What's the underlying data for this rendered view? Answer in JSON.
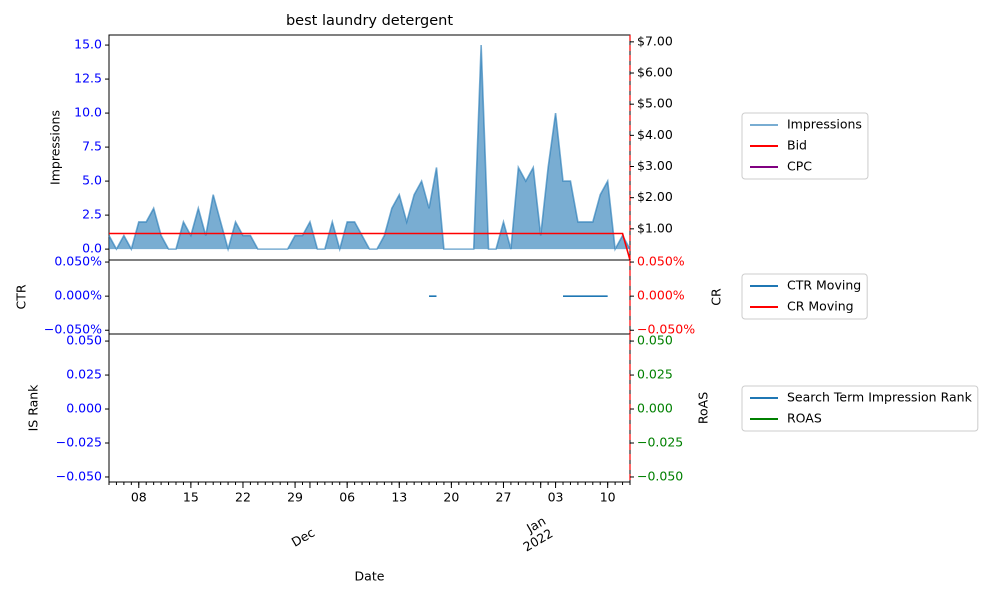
{
  "chart_data": [
    {
      "type": "line",
      "title": "best laundry detergent",
      "ylabel": "Impressions",
      "ylim": [
        -0.8,
        15.74
      ],
      "yticks": [
        {
          "value": 0,
          "label": "0.0"
        },
        2.5,
        {
          "value": 5,
          "label": "5.0"
        },
        7.5,
        {
          "value": 10,
          "label": "10.0"
        },
        12.5,
        {
          "value": 15,
          "label": "15.0"
        }
      ],
      "ytick_color": "blue",
      "y2lim": [
        0,
        7.22
      ],
      "y2ticks": [
        {
          "value": 1,
          "label": "$1.00"
        },
        {
          "value": 2,
          "label": "$2.00"
        },
        {
          "value": 3,
          "label": "$3.00"
        },
        {
          "value": 4,
          "label": "$4.00"
        },
        {
          "value": 5,
          "label": "$5.00"
        },
        {
          "value": 6,
          "label": "$6.00"
        },
        {
          "value": 7,
          "label": "$7.00"
        }
      ],
      "y2tick_color": "black",
      "legend": "outside right",
      "series": [
        {
          "name": "Impressions",
          "color": "#1f77b4",
          "alpha": 0.6,
          "fill": true,
          "values": [
            1,
            0,
            1,
            0,
            2,
            2,
            3,
            1,
            0,
            0,
            2,
            1,
            3,
            1,
            4,
            2,
            0,
            2,
            1,
            1,
            0,
            0,
            0,
            0,
            0,
            1,
            1,
            2,
            0,
            0,
            2,
            0,
            2,
            2,
            1,
            0,
            0,
            1,
            3,
            4,
            2,
            4,
            5,
            3,
            6,
            0,
            0,
            0,
            0,
            0,
            15,
            0,
            0,
            2,
            0,
            6,
            5,
            6,
            1,
            6,
            10,
            5,
            5,
            2,
            2,
            2,
            4,
            5,
            0,
            1,
            0
          ]
        },
        {
          "name": "Bid",
          "color": "red",
          "axis": "y2",
          "values": [
            0.85,
            0.85,
            0.85,
            0.85,
            0.85,
            0.85,
            0.85,
            0.85,
            0.85,
            0.85,
            0.85,
            0.85,
            0.85,
            0.85,
            0.85,
            0.85,
            0.85,
            0.85,
            0.85,
            0.85,
            0.85,
            0.85,
            0.85,
            0.85,
            0.85,
            0.85,
            0.85,
            0.85,
            0.85,
            0.85,
            0.85,
            0.85,
            0.85,
            0.85,
            0.85,
            0.85,
            0.85,
            0.85,
            0.85,
            0.85,
            0.85,
            0.85,
            0.85,
            0.85,
            0.85,
            0.85,
            0.85,
            0.85,
            0.85,
            0.85,
            0.85,
            0.85,
            0.85,
            0.85,
            0.85,
            0.85,
            0.85,
            0.85,
            0.85,
            0.85,
            0.85,
            0.85,
            0.85,
            0.85,
            0.85,
            0.85,
            0.85,
            0.85,
            0.85,
            0.85,
            0
          ]
        },
        {
          "name": "CPC",
          "color": "purple",
          "axis": "y2",
          "values": [
            null,
            null,
            null,
            null,
            null,
            null,
            null,
            null,
            null,
            null,
            null,
            null,
            null,
            null,
            null,
            null,
            null,
            null,
            null,
            null,
            null,
            null,
            null,
            null,
            null,
            null,
            null,
            null,
            null,
            null,
            null,
            null,
            null,
            null,
            null,
            null,
            null,
            null,
            null,
            null,
            null,
            null,
            null,
            null,
            null,
            null,
            null,
            null,
            null,
            null,
            null,
            null,
            null,
            null,
            null,
            null,
            null,
            null,
            null,
            null,
            null,
            null,
            null,
            null,
            null,
            null,
            null,
            null,
            null,
            null,
            null
          ]
        }
      ]
    },
    {
      "type": "line",
      "ylabel": "CTR",
      "y2label": "CR",
      "ylim": [
        -0.0555,
        0.053
      ],
      "yticks": [
        {
          "value": -0.05,
          "label": "−0.050%"
        },
        {
          "value": 0,
          "label": "0.000%"
        },
        {
          "value": 0.05,
          "label": "0.050%"
        }
      ],
      "ytick_color": "blue",
      "y2lim": [
        -0.0555,
        0.053
      ],
      "y2ticks": [
        {
          "value": -0.05,
          "label": "−0.050%"
        },
        {
          "value": 0,
          "label": "0.000%"
        },
        {
          "value": 0.05,
          "label": "0.050%"
        }
      ],
      "y2tick_color": "red",
      "legend": "outside right",
      "series": [
        {
          "name": "CTR Moving",
          "color": "#1f77b4",
          "values": [
            null,
            null,
            null,
            null,
            null,
            null,
            null,
            null,
            null,
            null,
            null,
            null,
            null,
            null,
            null,
            null,
            null,
            null,
            null,
            null,
            null,
            null,
            null,
            null,
            null,
            null,
            null,
            null,
            null,
            null,
            null,
            null,
            null,
            null,
            null,
            null,
            null,
            null,
            null,
            null,
            null,
            null,
            null,
            0,
            0,
            null,
            null,
            null,
            null,
            null,
            null,
            null,
            null,
            null,
            null,
            null,
            null,
            null,
            null,
            null,
            null,
            0,
            0,
            0,
            0,
            0,
            0,
            0,
            null,
            null,
            null
          ]
        },
        {
          "name": "CR Moving",
          "color": "red",
          "axis": "y2",
          "values": [
            null,
            null,
            null,
            null,
            null,
            null,
            null,
            null,
            null,
            null,
            null,
            null,
            null,
            null,
            null,
            null,
            null,
            null,
            null,
            null,
            null,
            null,
            null,
            null,
            null,
            null,
            null,
            null,
            null,
            null,
            null,
            null,
            null,
            null,
            null,
            null,
            null,
            null,
            null,
            null,
            null,
            null,
            null,
            null,
            null,
            null,
            null,
            null,
            null,
            null,
            null,
            null,
            null,
            null,
            null,
            null,
            null,
            null,
            null,
            null,
            null,
            null,
            null,
            null,
            null,
            null,
            null,
            null,
            null,
            null,
            null
          ]
        }
      ]
    },
    {
      "type": "line",
      "ylabel": "IS Rank",
      "y2label": "RoAS",
      "xlabel": "Date",
      "ylim": [
        -0.0537,
        0.0552
      ],
      "yticks": [
        {
          "value": -0.05,
          "label": "−0.050"
        },
        {
          "value": -0.025,
          "label": "−0.025"
        },
        {
          "value": 0,
          "label": "0.000"
        },
        {
          "value": 0.025,
          "label": "0.025"
        },
        {
          "value": 0.05,
          "label": "0.050"
        }
      ],
      "ytick_color": "blue",
      "y2lim": [
        -0.0537,
        0.0552
      ],
      "y2ticks": [
        {
          "value": -0.05,
          "label": "−0.050"
        },
        {
          "value": -0.025,
          "label": "−0.025"
        },
        {
          "value": 0,
          "label": "0.000"
        },
        {
          "value": 0.025,
          "label": "0.025"
        },
        {
          "value": 0.05,
          "label": "0.050"
        }
      ],
      "y2tick_color": "green",
      "legend": "outside right",
      "xlim": [
        "2021-11-04",
        "2022-01-13"
      ],
      "xticks": [
        {
          "value": "2021-11-08",
          "label": "08"
        },
        {
          "value": "2021-11-15",
          "label": "15"
        },
        {
          "value": "2021-11-22",
          "label": "22"
        },
        {
          "value": "2021-11-29",
          "label": "29"
        },
        {
          "value": "2021-12-01",
          "label": "Dec"
        },
        {
          "value": "2021-12-06",
          "label": "06"
        },
        {
          "value": "2021-12-13",
          "label": "13"
        },
        {
          "value": "2021-12-20",
          "label": "20"
        },
        {
          "value": "2021-12-27",
          "label": "27"
        },
        {
          "value": "2022-01-01",
          "label": "Jan\n2022"
        },
        {
          "value": "2022-01-03",
          "label": "03"
        },
        {
          "value": "2022-01-10",
          "label": "10"
        }
      ],
      "x": [
        "2021-11-04",
        "2021-11-05",
        "2021-11-06",
        "2021-11-07",
        "2021-11-08",
        "2021-11-09",
        "2021-11-10",
        "2021-11-11",
        "2021-11-12",
        "2021-11-13",
        "2021-11-14",
        "2021-11-15",
        "2021-11-16",
        "2021-11-17",
        "2021-11-18",
        "2021-11-19",
        "2021-11-20",
        "2021-11-21",
        "2021-11-22",
        "2021-11-23",
        "2021-11-24",
        "2021-11-25",
        "2021-11-26",
        "2021-11-27",
        "2021-11-28",
        "2021-11-29",
        "2021-11-30",
        "2021-12-01",
        "2021-12-02",
        "2021-12-03",
        "2021-12-04",
        "2021-12-05",
        "2021-12-06",
        "2021-12-07",
        "2021-12-08",
        "2021-12-09",
        "2021-12-10",
        "2021-12-11",
        "2021-12-12",
        "2021-12-13",
        "2021-12-14",
        "2021-12-15",
        "2021-12-16",
        "2021-12-17",
        "2021-12-18",
        "2021-12-19",
        "2021-12-20",
        "2021-12-21",
        "2021-12-22",
        "2021-12-23",
        "2021-12-24",
        "2021-12-25",
        "2021-12-26",
        "2021-12-27",
        "2021-12-28",
        "2021-12-29",
        "2021-12-30",
        "2021-12-31",
        "2022-01-01",
        "2022-01-02",
        "2022-01-03",
        "2022-01-04",
        "2022-01-05",
        "2022-01-06",
        "2022-01-07",
        "2022-01-08",
        "2022-01-09",
        "2022-01-10",
        "2022-01-11",
        "2022-01-12",
        "2022-01-13"
      ],
      "series": [
        {
          "name": "Search Term Impression Rank",
          "color": "#1f77b4",
          "values": [
            null,
            null,
            null,
            null,
            null,
            null,
            null,
            null,
            null,
            null,
            null,
            null,
            null,
            null,
            null,
            null,
            null,
            null,
            null,
            null,
            null,
            null,
            null,
            null,
            null,
            null,
            null,
            null,
            null,
            null,
            null,
            null,
            null,
            null,
            null,
            null,
            null,
            null,
            null,
            null,
            null,
            null,
            null,
            null,
            null,
            null,
            null,
            null,
            null,
            null,
            null,
            null,
            null,
            null,
            null,
            null,
            null,
            null,
            null,
            null,
            null,
            null,
            null,
            null,
            null,
            null,
            null,
            null,
            null,
            null,
            null
          ]
        },
        {
          "name": "ROAS",
          "color": "green",
          "axis": "y2",
          "values": [
            null,
            null,
            null,
            null,
            null,
            null,
            null,
            null,
            null,
            null,
            null,
            null,
            null,
            null,
            null,
            null,
            null,
            null,
            null,
            null,
            null,
            null,
            null,
            null,
            null,
            null,
            null,
            null,
            null,
            null,
            null,
            null,
            null,
            null,
            null,
            null,
            null,
            null,
            null,
            null,
            null,
            null,
            null,
            null,
            null,
            null,
            null,
            null,
            null,
            null,
            null,
            null,
            null,
            null,
            null,
            null,
            null,
            null,
            null,
            null,
            null,
            null,
            null,
            null,
            null,
            null,
            null,
            null,
            null,
            null,
            null
          ]
        }
      ]
    }
  ]
}
